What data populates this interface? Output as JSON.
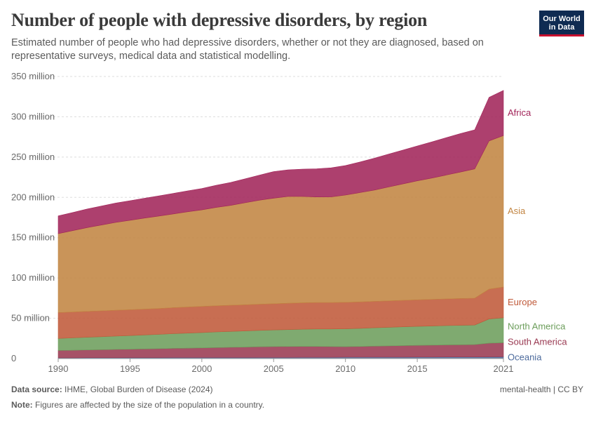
{
  "header": {
    "title": "Number of people with depressive disorders, by region",
    "subtitle": "Estimated number of people who had depressive disorders, whether or not they are diagnosed, based on representative surveys, medical data and statistical modelling.",
    "logo_line1": "Our World",
    "logo_line2": "in Data"
  },
  "footer": {
    "source_label": "Data source:",
    "source_text": "IHME, Global Burden of Disease (2024)",
    "note_label": "Note:",
    "note_text": "Figures are affected by the size of the population in a country.",
    "license": "mental-health | CC BY"
  },
  "colors": {
    "Oceania": "#4c6a9c",
    "South America": "#9a3a52",
    "North America": "#6d9e5c",
    "Europe": "#c05a3a",
    "Asia": "#c28542",
    "Africa": "#a2255a"
  },
  "chart_data": {
    "type": "area",
    "stacked": true,
    "x": [
      1990,
      1991,
      1992,
      1993,
      1994,
      1995,
      1996,
      1997,
      1998,
      1999,
      2000,
      2001,
      2002,
      2003,
      2004,
      2005,
      2006,
      2007,
      2008,
      2009,
      2010,
      2011,
      2012,
      2013,
      2014,
      2015,
      2016,
      2017,
      2018,
      2019,
      2020,
      2021
    ],
    "xticks": [
      1990,
      1995,
      2000,
      2005,
      2010,
      2015,
      2021
    ],
    "ylim": [
      0,
      350000000
    ],
    "yticks": [
      0,
      50000000,
      100000000,
      150000000,
      200000000,
      250000000,
      300000000,
      350000000
    ],
    "ytick_labels": [
      "0",
      "50 million",
      "100 million",
      "150 million",
      "200 million",
      "250 million",
      "300 million",
      "350 million"
    ],
    "grid": "horizontal dashed",
    "legend": "labels at right end of each series",
    "series": [
      {
        "name": "Oceania",
        "values": [
          1000000,
          1000000,
          1100000,
          1100000,
          1100000,
          1200000,
          1200000,
          1200000,
          1300000,
          1300000,
          1300000,
          1400000,
          1400000,
          1400000,
          1500000,
          1500000,
          1500000,
          1600000,
          1600000,
          1600000,
          1700000,
          1700000,
          1800000,
          1800000,
          1800000,
          1900000,
          1900000,
          2000000,
          2000000,
          2000000,
          2100000,
          2200000
        ]
      },
      {
        "name": "South America",
        "values": [
          9000000,
          9300000,
          9600000,
          9900000,
          10200000,
          10400000,
          10700000,
          11000000,
          11300000,
          11600000,
          11900000,
          12200000,
          12500000,
          12800000,
          13100000,
          13300000,
          13500000,
          13500000,
          13500000,
          13200000,
          13000000,
          13300000,
          13600000,
          13900000,
          14200000,
          14500000,
          14700000,
          14900000,
          15100000,
          15300000,
          17000000,
          17500000
        ]
      },
      {
        "name": "North America",
        "values": [
          15000000,
          15400000,
          15800000,
          16200000,
          16600000,
          17000000,
          17400000,
          17800000,
          18300000,
          18700000,
          19100000,
          19500000,
          19800000,
          20100000,
          20400000,
          20700000,
          21000000,
          21300000,
          21600000,
          21900000,
          22200000,
          22500000,
          22800000,
          23100000,
          23400000,
          23600000,
          23800000,
          24000000,
          24200000,
          24300000,
          30000000,
          31000000
        ]
      },
      {
        "name": "Europe",
        "values": [
          32000000,
          32000000,
          32000000,
          32000000,
          32000000,
          32000000,
          32000000,
          32100000,
          32200000,
          32300000,
          32400000,
          32400000,
          32400000,
          32400000,
          32400000,
          32500000,
          32600000,
          32700000,
          32800000,
          32800000,
          32800000,
          32800000,
          32800000,
          32800000,
          32800000,
          32900000,
          33000000,
          33100000,
          33200000,
          33300000,
          37000000,
          38000000
        ]
      },
      {
        "name": "Asia",
        "values": [
          98000000,
          101000000,
          104000000,
          106500000,
          109000000,
          111000000,
          113000000,
          114700000,
          116300000,
          118200000,
          119800000,
          122000000,
          124000000,
          126600000,
          129100000,
          131000000,
          132500000,
          132000000,
          131000000,
          131100000,
          133200000,
          135600000,
          138000000,
          141300000,
          144500000,
          147600000,
          150500000,
          153700000,
          156900000,
          160400000,
          184000000,
          188000000
        ]
      },
      {
        "name": "Africa",
        "values": [
          22000000,
          22500000,
          23000000,
          23500000,
          24000000,
          24300000,
          24600000,
          25000000,
          25500000,
          26000000,
          26500000,
          27500000,
          28400000,
          29700000,
          31000000,
          33000000,
          33000000,
          34000000,
          35000000,
          36000000,
          36600000,
          38000000,
          39500000,
          40700000,
          42000000,
          43300000,
          44900000,
          46300000,
          47700000,
          48500000,
          54000000,
          56000000
        ]
      }
    ]
  }
}
